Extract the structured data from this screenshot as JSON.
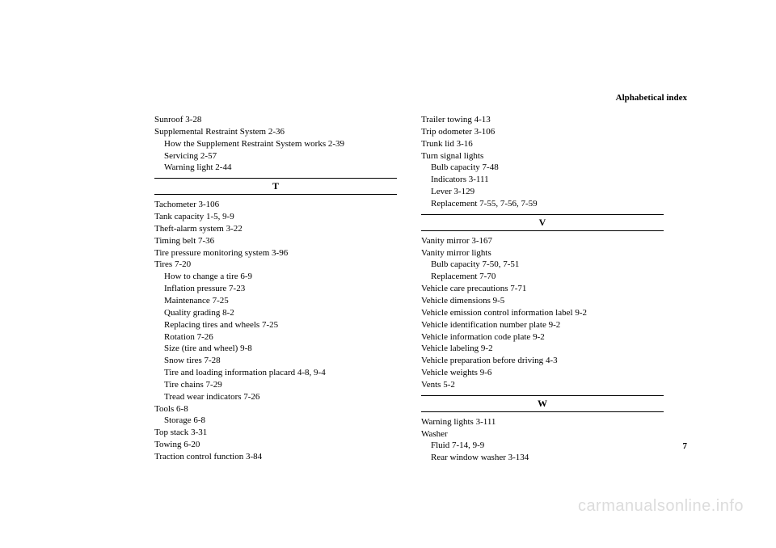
{
  "header": "Alphabetical index",
  "pageNumber": "7",
  "watermark": "carmanualsonline.info",
  "left": {
    "preEntries": [
      {
        "text": "Sunroof",
        "ref": "3-28",
        "sub": false
      },
      {
        "text": "Supplemental Restraint System",
        "ref": "2-36",
        "sub": false
      },
      {
        "text": "How the Supplement Restraint System works",
        "ref": "2-39",
        "sub": true
      },
      {
        "text": "Servicing",
        "ref": "2-57",
        "sub": true
      },
      {
        "text": "Warning light",
        "ref": "2-44",
        "sub": true
      }
    ],
    "sectionLetter": "T",
    "entries": [
      {
        "text": "Tachometer",
        "ref": "3-106",
        "sub": false
      },
      {
        "text": "Tank capacity",
        "ref": "1-5, 9-9",
        "sub": false
      },
      {
        "text": "Theft-alarm system",
        "ref": "3-22",
        "sub": false
      },
      {
        "text": "Timing belt",
        "ref": "7-36",
        "sub": false
      },
      {
        "text": "Tire pressure monitoring system",
        "ref": "3-96",
        "sub": false
      },
      {
        "text": "Tires",
        "ref": "7-20",
        "sub": false
      },
      {
        "text": "How to change a tire",
        "ref": "6-9",
        "sub": true
      },
      {
        "text": "Inflation pressure",
        "ref": "7-23",
        "sub": true
      },
      {
        "text": "Maintenance",
        "ref": "7-25",
        "sub": true
      },
      {
        "text": "Quality grading",
        "ref": "8-2",
        "sub": true
      },
      {
        "text": "Replacing tires and wheels",
        "ref": "7-25",
        "sub": true
      },
      {
        "text": "Rotation",
        "ref": "7-26",
        "sub": true
      },
      {
        "text": "Size (tire and wheel)",
        "ref": "9-8",
        "sub": true
      },
      {
        "text": "Snow tires",
        "ref": "7-28",
        "sub": true
      },
      {
        "text": "Tire and loading information placard",
        "ref": "4-8, 9-4",
        "sub": true
      },
      {
        "text": "Tire chains",
        "ref": "7-29",
        "sub": true
      },
      {
        "text": "Tread wear indicators",
        "ref": "7-26",
        "sub": true
      },
      {
        "text": "Tools",
        "ref": "6-8",
        "sub": false
      },
      {
        "text": "Storage",
        "ref": "6-8",
        "sub": true
      },
      {
        "text": "Top stack",
        "ref": "3-31",
        "sub": false
      },
      {
        "text": "Towing",
        "ref": "6-20",
        "sub": false
      },
      {
        "text": "Traction control function",
        "ref": "3-84",
        "sub": false
      }
    ]
  },
  "right": {
    "preEntries": [
      {
        "text": "Trailer towing",
        "ref": "4-13",
        "sub": false
      },
      {
        "text": "Trip odometer",
        "ref": "3-106",
        "sub": false
      },
      {
        "text": "Trunk lid",
        "ref": "3-16",
        "sub": false
      },
      {
        "text": "Turn signal lights",
        "ref": "",
        "sub": false
      },
      {
        "text": "Bulb capacity",
        "ref": "7-48",
        "sub": true
      },
      {
        "text": "Indicators",
        "ref": "3-111",
        "sub": true
      },
      {
        "text": "Lever",
        "ref": "3-129",
        "sub": true
      },
      {
        "text": "Replacement",
        "ref": "7-55, 7-56, 7-59",
        "sub": true
      }
    ],
    "sectionV": "V",
    "entriesV": [
      {
        "text": "Vanity mirror",
        "ref": "3-167",
        "sub": false
      },
      {
        "text": "Vanity mirror lights",
        "ref": "",
        "sub": false
      },
      {
        "text": "Bulb capacity",
        "ref": "7-50, 7-51",
        "sub": true
      },
      {
        "text": "Replacement",
        "ref": "7-70",
        "sub": true
      },
      {
        "text": "Vehicle care precautions",
        "ref": "7-71",
        "sub": false
      },
      {
        "text": "Vehicle dimensions",
        "ref": "9-5",
        "sub": false
      },
      {
        "text": "Vehicle emission control information label",
        "ref": "9-2",
        "sub": false
      },
      {
        "text": "Vehicle identification number plate",
        "ref": "9-2",
        "sub": false
      },
      {
        "text": "Vehicle information code plate",
        "ref": "9-2",
        "sub": false
      },
      {
        "text": "Vehicle labeling",
        "ref": "9-2",
        "sub": false
      },
      {
        "text": "Vehicle preparation before driving",
        "ref": "4-3",
        "sub": false
      },
      {
        "text": "Vehicle weights",
        "ref": "9-6",
        "sub": false
      },
      {
        "text": "Vents",
        "ref": "5-2",
        "sub": false
      }
    ],
    "sectionW": "W",
    "entriesW": [
      {
        "text": "Warning lights",
        "ref": "3-111",
        "sub": false
      },
      {
        "text": "Washer",
        "ref": "",
        "sub": false
      },
      {
        "text": "Fluid",
        "ref": "7-14, 9-9",
        "sub": true
      },
      {
        "text": "Rear window washer",
        "ref": "3-134",
        "sub": true
      }
    ]
  }
}
